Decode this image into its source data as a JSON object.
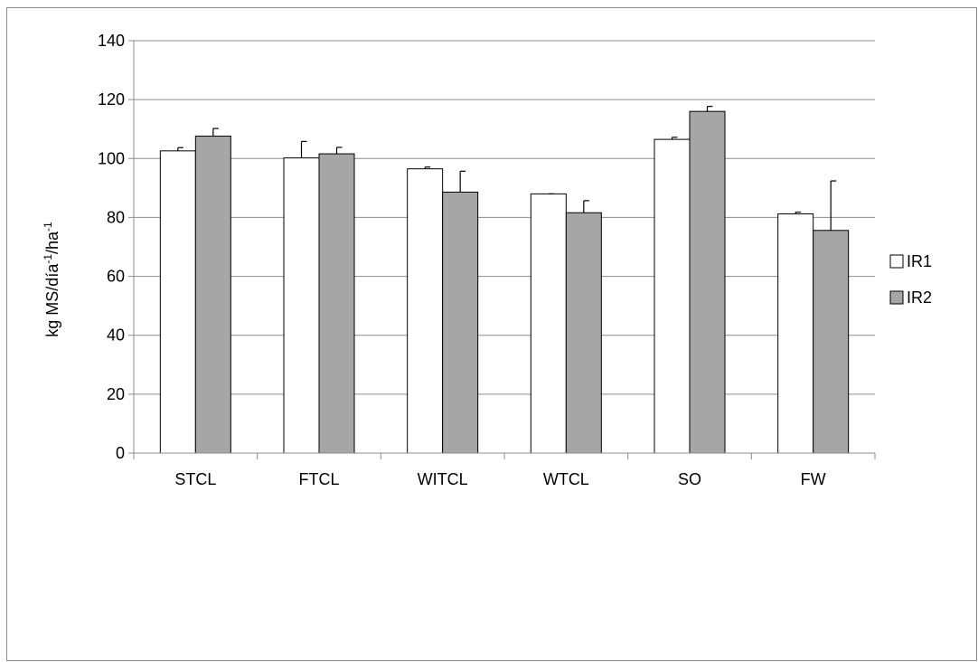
{
  "chart_data": {
    "type": "bar",
    "categories": [
      "STCL",
      "FTCL",
      "WITCL",
      "WTCL",
      "SO",
      "FW"
    ],
    "series": [
      {
        "name": "IR1",
        "values": [
          102.6,
          100.2,
          96.5,
          88.0,
          106.5,
          81.2
        ],
        "errors": [
          1.1,
          5.6,
          0.6,
          0.0,
          0.7,
          0.6
        ],
        "color": "#ffffff"
      },
      {
        "name": "IR2",
        "values": [
          107.6,
          101.6,
          88.6,
          81.6,
          116.0,
          75.6
        ],
        "errors": [
          2.6,
          2.2,
          7.1,
          4.1,
          1.7,
          16.8
        ],
        "color": "#a6a6a6"
      }
    ],
    "ylim": [
      0,
      140
    ],
    "yticks": [
      0,
      20,
      40,
      60,
      80,
      100,
      120,
      140
    ],
    "ylabel": {
      "base": "kg MS/día",
      "sup1": "-1",
      "mid": "/ha",
      "sup2": "-1"
    },
    "xlabel": "",
    "grid": true,
    "legend_position": "right"
  }
}
